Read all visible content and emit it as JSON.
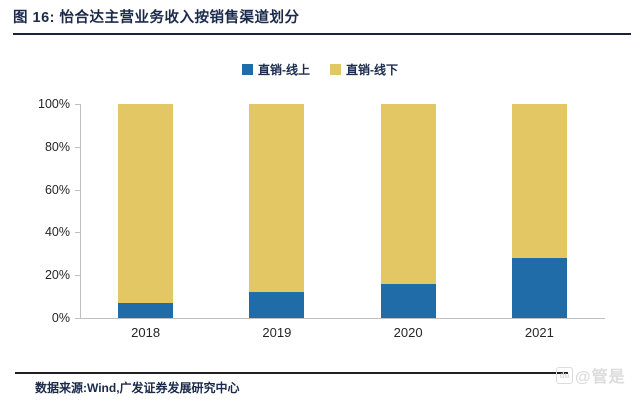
{
  "title": "图 16: 怡合达主营业务收入按销售渠道划分",
  "chart_data": {
    "type": "bar",
    "stacked": true,
    "title": "怡合达主营业务收入按销售渠道划分",
    "categories": [
      "2018",
      "2019",
      "2020",
      "2021"
    ],
    "series": [
      {
        "name": "直销-线上",
        "color": "#1F6CA8",
        "values": [
          7,
          12,
          16,
          28
        ]
      },
      {
        "name": "直销-线下",
        "color": "#E2C764",
        "values": [
          93,
          88,
          84,
          72
        ]
      }
    ],
    "unit": "%",
    "ylim": [
      0,
      100
    ],
    "ytick_values": [
      0,
      20,
      40,
      60,
      80,
      100
    ],
    "ytick_labels": [
      "0%",
      "20%",
      "40%",
      "60%",
      "80%",
      "100%"
    ],
    "grid": false,
    "legend_position": "top",
    "axis_color": "#BFBFBF",
    "label_color": "#262626"
  },
  "footer": {
    "source_label": "数据来源:Wind,广发证券发展研究中心"
  },
  "watermark": {
    "badge": "du",
    "text": "@管是"
  }
}
